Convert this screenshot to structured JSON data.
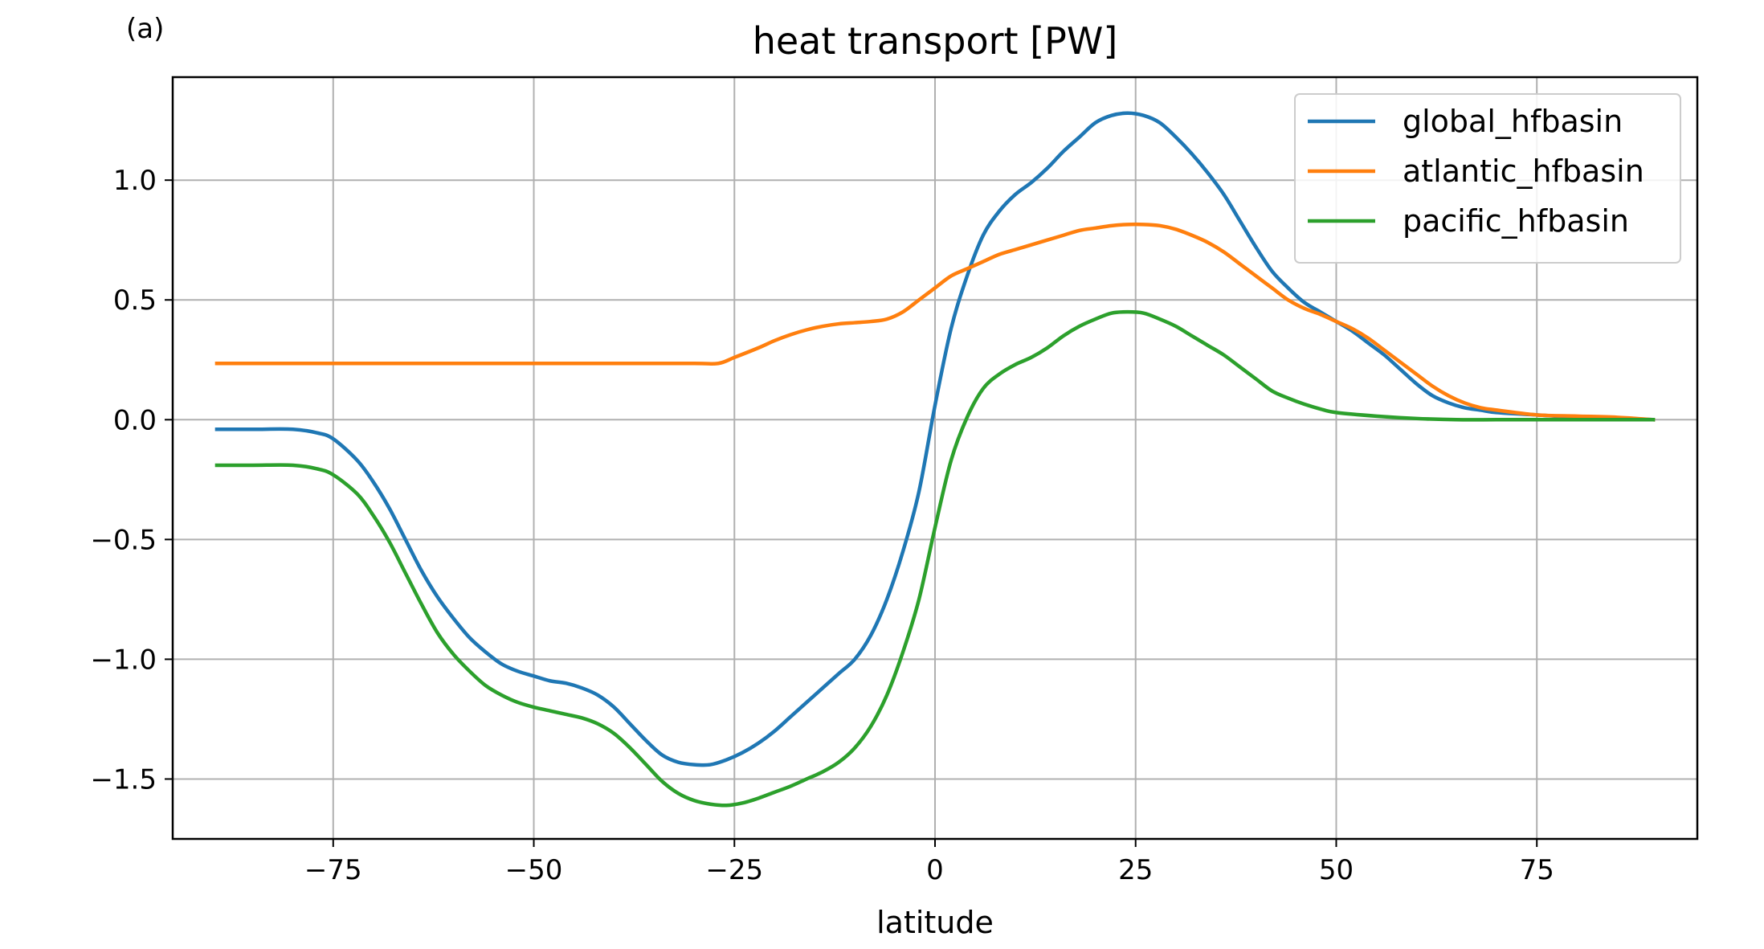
{
  "panel_label": "(a)",
  "chart_data": {
    "type": "line",
    "title": "heat transport [PW]",
    "xlabel": "latitude",
    "ylabel": "",
    "xlim": [
      -95,
      95
    ],
    "ylim": [
      -1.75,
      1.43
    ],
    "xticks": [
      -75,
      -50,
      -25,
      0,
      25,
      50,
      75
    ],
    "xtick_labels": [
      "−75",
      "−50",
      "−25",
      "0",
      "25",
      "50",
      "75"
    ],
    "yticks": [
      -1.5,
      -1.0,
      -0.5,
      0.0,
      0.5,
      1.0
    ],
    "ytick_labels": [
      "−1.5",
      "−1.0",
      "−0.5",
      "0.0",
      "0.5",
      "1.0"
    ],
    "grid": true,
    "legend_position": "top-right",
    "series": [
      {
        "name": "global_hfbasin",
        "color": "#1f77b4",
        "x": [
          -89.5,
          -85,
          -80,
          -77,
          -75,
          -72,
          -70,
          -68,
          -66,
          -64,
          -62,
          -60,
          -58,
          -56,
          -54,
          -52,
          -50,
          -48,
          -46,
          -44,
          -42,
          -40,
          -38,
          -36,
          -34,
          -32,
          -30,
          -28,
          -26,
          -24,
          -22,
          -20,
          -18,
          -16,
          -14,
          -12,
          -10,
          -8,
          -6,
          -4,
          -2,
          0,
          2,
          4,
          6,
          8,
          10,
          12,
          14,
          16,
          18,
          20,
          22,
          24,
          26,
          28,
          30,
          32,
          34,
          36,
          38,
          40,
          42,
          44,
          46,
          48,
          50,
          52,
          54,
          56,
          58,
          60,
          62,
          64,
          66,
          68,
          70,
          75,
          80,
          85,
          89.5
        ],
        "y": [
          -0.04,
          -0.04,
          -0.04,
          -0.055,
          -0.08,
          -0.17,
          -0.26,
          -0.37,
          -0.5,
          -0.63,
          -0.74,
          -0.83,
          -0.91,
          -0.97,
          -1.02,
          -1.05,
          -1.07,
          -1.09,
          -1.1,
          -1.12,
          -1.15,
          -1.2,
          -1.27,
          -1.34,
          -1.4,
          -1.43,
          -1.44,
          -1.44,
          -1.42,
          -1.39,
          -1.35,
          -1.3,
          -1.24,
          -1.18,
          -1.12,
          -1.06,
          -1.0,
          -0.9,
          -0.75,
          -0.55,
          -0.3,
          0.06,
          0.38,
          0.6,
          0.77,
          0.87,
          0.94,
          0.99,
          1.05,
          1.12,
          1.18,
          1.24,
          1.27,
          1.28,
          1.27,
          1.24,
          1.18,
          1.11,
          1.03,
          0.94,
          0.83,
          0.72,
          0.62,
          0.55,
          0.49,
          0.45,
          0.41,
          0.37,
          0.32,
          0.27,
          0.21,
          0.15,
          0.1,
          0.07,
          0.05,
          0.04,
          0.03,
          0.02,
          0.01,
          0.005,
          0.0
        ]
      },
      {
        "name": "atlantic_hfbasin",
        "color": "#ff7f0e",
        "x": [
          -89.5,
          -80,
          -70,
          -60,
          -50,
          -40,
          -30,
          -27,
          -25,
          -22,
          -20,
          -18,
          -16,
          -14,
          -12,
          -10,
          -8,
          -6,
          -4,
          -2,
          0,
          2,
          4,
          6,
          8,
          10,
          12,
          14,
          16,
          18,
          20,
          22,
          24,
          26,
          28,
          30,
          32,
          34,
          36,
          38,
          40,
          42,
          44,
          46,
          48,
          50,
          52,
          54,
          56,
          58,
          60,
          62,
          64,
          66,
          68,
          70,
          75,
          80,
          85,
          89.5
        ],
        "y": [
          0.235,
          0.235,
          0.235,
          0.235,
          0.235,
          0.235,
          0.235,
          0.235,
          0.26,
          0.3,
          0.33,
          0.355,
          0.375,
          0.39,
          0.4,
          0.405,
          0.41,
          0.42,
          0.45,
          0.5,
          0.55,
          0.6,
          0.63,
          0.66,
          0.69,
          0.71,
          0.73,
          0.75,
          0.77,
          0.79,
          0.8,
          0.81,
          0.815,
          0.815,
          0.81,
          0.795,
          0.77,
          0.74,
          0.7,
          0.65,
          0.6,
          0.55,
          0.5,
          0.465,
          0.44,
          0.41,
          0.38,
          0.34,
          0.29,
          0.24,
          0.19,
          0.14,
          0.1,
          0.07,
          0.05,
          0.04,
          0.02,
          0.015,
          0.01,
          0.0
        ]
      },
      {
        "name": "pacific_hfbasin",
        "color": "#2ca02c",
        "x": [
          -89.5,
          -85,
          -80,
          -77,
          -75,
          -72,
          -70,
          -68,
          -66,
          -64,
          -62,
          -60,
          -58,
          -56,
          -54,
          -52,
          -50,
          -48,
          -46,
          -44,
          -42,
          -40,
          -38,
          -36,
          -34,
          -32,
          -30,
          -28,
          -26,
          -24,
          -22,
          -20,
          -18,
          -16,
          -14,
          -12,
          -10,
          -8,
          -6,
          -4,
          -2,
          0,
          2,
          4,
          6,
          8,
          10,
          12,
          14,
          16,
          18,
          20,
          22,
          24,
          26,
          28,
          30,
          32,
          34,
          36,
          38,
          40,
          42,
          44,
          46,
          48,
          50,
          55,
          60,
          65,
          70,
          75,
          80,
          85,
          89.5
        ],
        "y": [
          -0.19,
          -0.19,
          -0.19,
          -0.205,
          -0.23,
          -0.31,
          -0.4,
          -0.51,
          -0.64,
          -0.77,
          -0.89,
          -0.98,
          -1.05,
          -1.11,
          -1.15,
          -1.18,
          -1.2,
          -1.215,
          -1.23,
          -1.245,
          -1.27,
          -1.31,
          -1.37,
          -1.44,
          -1.51,
          -1.56,
          -1.59,
          -1.605,
          -1.61,
          -1.6,
          -1.58,
          -1.555,
          -1.53,
          -1.5,
          -1.47,
          -1.43,
          -1.37,
          -1.28,
          -1.15,
          -0.97,
          -0.75,
          -0.45,
          -0.17,
          0.01,
          0.13,
          0.19,
          0.23,
          0.26,
          0.3,
          0.35,
          0.39,
          0.42,
          0.445,
          0.45,
          0.445,
          0.42,
          0.39,
          0.35,
          0.31,
          0.27,
          0.22,
          0.17,
          0.12,
          0.09,
          0.065,
          0.045,
          0.03,
          0.015,
          0.005,
          0.0,
          0.0,
          0.0,
          0.0,
          0.0,
          0.0
        ]
      }
    ]
  }
}
